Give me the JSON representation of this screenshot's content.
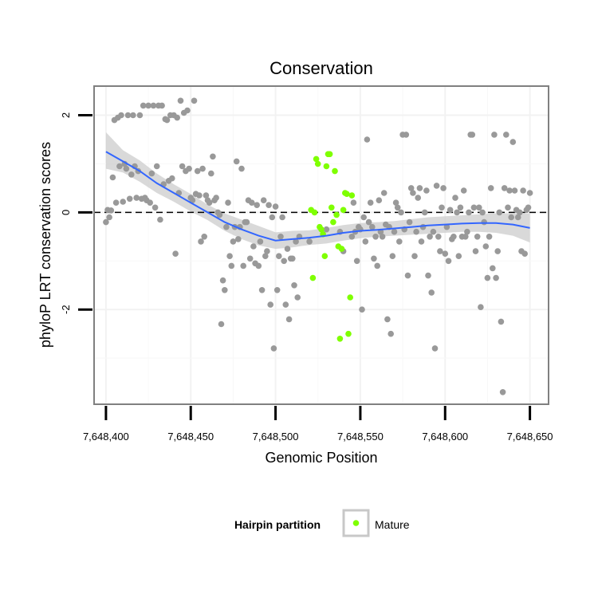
{
  "chart_data": {
    "type": "scatter",
    "title": "Conservation",
    "xlabel": "Genomic Position",
    "ylabel": "phyloP LRT conservation scores",
    "xlim": [
      7648393,
      7648661
    ],
    "ylim": [
      -3.95,
      2.6
    ],
    "x_ticks": [
      7648400,
      7648450,
      7648500,
      7648550,
      7648600,
      7648650
    ],
    "x_tick_labels": [
      "7,648,400",
      "7,648,450",
      "7,648,500",
      "7,648,550",
      "7,648,600",
      "7,648,650"
    ],
    "y_ticks": [
      -2,
      0,
      2
    ],
    "y_tick_labels": [
      "-2",
      "0",
      "2"
    ],
    "grid": true,
    "reference_line": {
      "y": 0,
      "style": "dashed",
      "color": "#000000"
    },
    "legend": {
      "title": "Hairpin partition",
      "placement": "bottom",
      "entries": [
        "Mature"
      ]
    },
    "colors": {
      "other": "#999999",
      "mature": "#7fff00",
      "smooth": "#3366ff",
      "band": "#cccccc"
    },
    "series": [
      {
        "key": "other",
        "points": [
          [
            7648400,
            -0.2
          ],
          [
            7648401,
            0.05
          ],
          [
            7648402,
            -0.1
          ],
          [
            7648403,
            0.04
          ],
          [
            7648404,
            0.72
          ],
          [
            7648405,
            1.9
          ],
          [
            7648406,
            0.2
          ],
          [
            7648407,
            1.95
          ],
          [
            7648408,
            0.95
          ],
          [
            7648409,
            2.0
          ],
          [
            7648410,
            0.22
          ],
          [
            7648411,
            1.0
          ],
          [
            7648412,
            0.9
          ],
          [
            7648413,
            2.0
          ],
          [
            7648414,
            0.28
          ],
          [
            7648415,
            0.78
          ],
          [
            7648416,
            2.0
          ],
          [
            7648417,
            0.95
          ],
          [
            7648418,
            0.3
          ],
          [
            7648419,
            0.85
          ],
          [
            7648420,
            2.0
          ],
          [
            7648421,
            0.28
          ],
          [
            7648422,
            2.2
          ],
          [
            7648423,
            0.3
          ],
          [
            7648424,
            0.25
          ],
          [
            7648425,
            2.2
          ],
          [
            7648426,
            0.2
          ],
          [
            7648427,
            0.8
          ],
          [
            7648428,
            2.2
          ],
          [
            7648429,
            0.1
          ],
          [
            7648430,
            0.95
          ],
          [
            7648431,
            2.2
          ],
          [
            7648432,
            -0.15
          ],
          [
            7648433,
            2.2
          ],
          [
            7648434,
            0.58
          ],
          [
            7648435,
            1.92
          ],
          [
            7648436,
            1.9
          ],
          [
            7648437,
            0.65
          ],
          [
            7648438,
            2.0
          ],
          [
            7648439,
            0.7
          ],
          [
            7648440,
            2.0
          ],
          [
            7648441,
            -0.85
          ],
          [
            7648442,
            1.95
          ],
          [
            7648443,
            0.4
          ],
          [
            7648444,
            2.3
          ],
          [
            7648445,
            0.95
          ],
          [
            7648446,
            2.05
          ],
          [
            7648447,
            0.85
          ],
          [
            7648448,
            2.1
          ],
          [
            7648449,
            0.9
          ],
          [
            7648450,
            0.3
          ],
          [
            7648451,
            0.25
          ],
          [
            7648452,
            2.3
          ],
          [
            7648453,
            0.38
          ],
          [
            7648454,
            0.85
          ],
          [
            7648455,
            0.35
          ],
          [
            7648456,
            -0.6
          ],
          [
            7648457,
            0.9
          ],
          [
            7648458,
            -0.5
          ],
          [
            7648459,
            0.35
          ],
          [
            7648460,
            0.25
          ],
          [
            7648461,
            0.2
          ],
          [
            7648462,
            0.8
          ],
          [
            7648463,
            1.15
          ],
          [
            7648464,
            0.25
          ],
          [
            7648465,
            0.3
          ],
          [
            7648466,
            0.0
          ],
          [
            7648467,
            -0.05
          ],
          [
            7648468,
            -2.3
          ],
          [
            7648469,
            -1.4
          ],
          [
            7648470,
            -1.6
          ],
          [
            7648471,
            -0.3
          ],
          [
            7648472,
            0.2
          ],
          [
            7648473,
            -0.9
          ],
          [
            7648474,
            -1.1
          ],
          [
            7648475,
            -0.6
          ],
          [
            7648476,
            -0.3
          ],
          [
            7648477,
            1.05
          ],
          [
            7648478,
            -0.55
          ],
          [
            7648479,
            -0.3
          ],
          [
            7648480,
            0.9
          ],
          [
            7648481,
            -1.1
          ],
          [
            7648482,
            -0.2
          ],
          [
            7648483,
            -0.2
          ],
          [
            7648484,
            0.25
          ],
          [
            7648485,
            -0.95
          ],
          [
            7648486,
            0.2
          ],
          [
            7648487,
            -0.7
          ],
          [
            7648488,
            -1.05
          ],
          [
            7648489,
            0.15
          ],
          [
            7648490,
            -1.1
          ],
          [
            7648491,
            -0.6
          ],
          [
            7648492,
            -1.6
          ],
          [
            7648493,
            0.25
          ],
          [
            7648494,
            -0.9
          ],
          [
            7648495,
            -0.8
          ],
          [
            7648496,
            0.15
          ],
          [
            7648497,
            -1.9
          ],
          [
            7648498,
            -0.1
          ],
          [
            7648499,
            -2.8
          ],
          [
            7648500,
            0.12
          ],
          [
            7648501,
            -1.6
          ],
          [
            7648502,
            -0.9
          ],
          [
            7648503,
            -0.5
          ],
          [
            7648504,
            -0.1
          ],
          [
            7648505,
            -1.0
          ],
          [
            7648506,
            -1.9
          ],
          [
            7648507,
            -0.75
          ],
          [
            7648508,
            -2.2
          ],
          [
            7648509,
            -0.95
          ],
          [
            7648510,
            -0.95
          ],
          [
            7648511,
            -1.5
          ],
          [
            7648512,
            -0.6
          ],
          [
            7648513,
            -1.75
          ],
          [
            7648514,
            -0.5
          ],
          [
            7648520,
            -0.6
          ],
          [
            7648530,
            -0.35
          ],
          [
            7648538,
            -0.4
          ],
          [
            7648540,
            -0.8
          ],
          [
            7648545,
            -0.5
          ],
          [
            7648546,
            0.2
          ],
          [
            7648547,
            -0.4
          ],
          [
            7648548,
            -1.0
          ],
          [
            7648549,
            -0.3
          ],
          [
            7648550,
            -0.35
          ],
          [
            7648551,
            -2.0
          ],
          [
            7648552,
            -0.1
          ],
          [
            7648553,
            -0.6
          ],
          [
            7648554,
            1.5
          ],
          [
            7648555,
            -0.2
          ],
          [
            7648556,
            0.2
          ],
          [
            7648557,
            -0.3
          ],
          [
            7648558,
            -0.95
          ],
          [
            7648559,
            -0.5
          ],
          [
            7648560,
            -1.1
          ],
          [
            7648561,
            0.25
          ],
          [
            7648562,
            -0.4
          ],
          [
            7648563,
            -0.5
          ],
          [
            7648564,
            0.4
          ],
          [
            7648565,
            -0.25
          ],
          [
            7648566,
            -2.2
          ],
          [
            7648567,
            -0.3
          ],
          [
            7648568,
            -2.5
          ],
          [
            7648569,
            -0.9
          ],
          [
            7648570,
            -0.4
          ],
          [
            7648571,
            0.2
          ],
          [
            7648572,
            0.1
          ],
          [
            7648573,
            -0.6
          ],
          [
            7648574,
            0.0
          ],
          [
            7648575,
            1.6
          ],
          [
            7648576,
            -0.35
          ],
          [
            7648577,
            1.6
          ],
          [
            7648578,
            -1.3
          ],
          [
            7648579,
            -0.2
          ],
          [
            7648580,
            0.5
          ],
          [
            7648581,
            0.4
          ],
          [
            7648582,
            -0.9
          ],
          [
            7648583,
            -0.4
          ],
          [
            7648584,
            0.3
          ],
          [
            7648585,
            0.5
          ],
          [
            7648586,
            -0.6
          ],
          [
            7648587,
            -0.3
          ],
          [
            7648588,
            0.0
          ],
          [
            7648589,
            0.45
          ],
          [
            7648590,
            -1.3
          ],
          [
            7648591,
            -0.5
          ],
          [
            7648592,
            -1.65
          ],
          [
            7648593,
            -0.4
          ],
          [
            7648594,
            -2.8
          ],
          [
            7648595,
            0.55
          ],
          [
            7648596,
            -0.5
          ],
          [
            7648597,
            -0.8
          ],
          [
            7648598,
            0.1
          ],
          [
            7648599,
            0.5
          ],
          [
            7648600,
            -0.85
          ],
          [
            7648601,
            -0.3
          ],
          [
            7648602,
            -1.0
          ],
          [
            7648603,
            0.05
          ],
          [
            7648604,
            -0.55
          ],
          [
            7648605,
            -0.5
          ],
          [
            7648606,
            0.3
          ],
          [
            7648607,
            0.0
          ],
          [
            7648608,
            -0.9
          ],
          [
            7648609,
            0.1
          ],
          [
            7648610,
            -0.5
          ],
          [
            7648611,
            0.45
          ],
          [
            7648612,
            -0.5
          ],
          [
            7648613,
            -0.4
          ],
          [
            7648614,
            0.0
          ],
          [
            7648615,
            1.6
          ],
          [
            7648616,
            1.6
          ],
          [
            7648617,
            0.1
          ],
          [
            7648618,
            -0.8
          ],
          [
            7648619,
            -0.5
          ],
          [
            7648620,
            0.1
          ],
          [
            7648621,
            -1.95
          ],
          [
            7648622,
            0.0
          ],
          [
            7648623,
            -0.2
          ],
          [
            7648624,
            -0.7
          ],
          [
            7648625,
            -1.35
          ],
          [
            7648626,
            -0.5
          ],
          [
            7648627,
            0.5
          ],
          [
            7648628,
            -1.15
          ],
          [
            7648629,
            1.6
          ],
          [
            7648630,
            -1.35
          ],
          [
            7648631,
            -0.8
          ],
          [
            7648632,
            0.0
          ],
          [
            7648633,
            -2.25
          ],
          [
            7648634,
            -3.7
          ],
          [
            7648635,
            0.5
          ],
          [
            7648636,
            1.6
          ],
          [
            7648637,
            0.1
          ],
          [
            7648638,
            0.45
          ],
          [
            7648639,
            -0.1
          ],
          [
            7648640,
            1.45
          ],
          [
            7648641,
            0.45
          ],
          [
            7648642,
            0.05
          ],
          [
            7648643,
            -0.1
          ],
          [
            7648644,
            0.0
          ],
          [
            7648645,
            -0.8
          ],
          [
            7648646,
            0.45
          ],
          [
            7648647,
            -0.85
          ],
          [
            7648648,
            0.05
          ],
          [
            7648649,
            0.1
          ],
          [
            7648650,
            0.4
          ]
        ]
      },
      {
        "key": "mature",
        "name": "Mature",
        "points": [
          [
            7648521,
            0.05
          ],
          [
            7648522,
            -1.35
          ],
          [
            7648523,
            0.0
          ],
          [
            7648524,
            1.1
          ],
          [
            7648525,
            1.0
          ],
          [
            7648526,
            -0.3
          ],
          [
            7648527,
            -0.35
          ],
          [
            7648528,
            -0.45
          ],
          [
            7648529,
            -0.9
          ],
          [
            7648530,
            0.95
          ],
          [
            7648531,
            1.2
          ],
          [
            7648532,
            1.2
          ],
          [
            7648533,
            0.1
          ],
          [
            7648534,
            -0.2
          ],
          [
            7648535,
            0.85
          ],
          [
            7648536,
            -0.05
          ],
          [
            7648537,
            -0.7
          ],
          [
            7648538,
            -2.6
          ],
          [
            7648539,
            -0.75
          ],
          [
            7648540,
            0.05
          ],
          [
            7648541,
            0.4
          ],
          [
            7648542,
            0.38
          ],
          [
            7648543,
            -2.5
          ],
          [
            7648544,
            -1.75
          ],
          [
            7648545,
            0.35
          ]
        ]
      }
    ],
    "smooth": {
      "x": [
        7648400,
        7648410,
        7648420,
        7648430,
        7648440,
        7648450,
        7648460,
        7648470,
        7648480,
        7648490,
        7648500,
        7648510,
        7648520,
        7648530,
        7648540,
        7648550,
        7648560,
        7648570,
        7648580,
        7648590,
        7648600,
        7648610,
        7648620,
        7648630,
        7648640,
        7648650
      ],
      "y": [
        1.25,
        1.05,
        0.85,
        0.6,
        0.4,
        0.2,
        0.0,
        -0.2,
        -0.35,
        -0.48,
        -0.58,
        -0.55,
        -0.52,
        -0.48,
        -0.42,
        -0.38,
        -0.36,
        -0.33,
        -0.3,
        -0.27,
        -0.25,
        -0.23,
        -0.22,
        -0.22,
        -0.25,
        -0.32
      ],
      "lower": [
        0.9,
        0.82,
        0.63,
        0.4,
        0.22,
        0.02,
        -0.16,
        -0.38,
        -0.55,
        -0.68,
        -0.75,
        -0.72,
        -0.67,
        -0.64,
        -0.58,
        -0.53,
        -0.5,
        -0.48,
        -0.46,
        -0.44,
        -0.42,
        -0.4,
        -0.4,
        -0.42,
        -0.48,
        -0.62
      ],
      "upper": [
        1.65,
        1.28,
        1.07,
        0.8,
        0.58,
        0.38,
        0.16,
        -0.02,
        -0.15,
        -0.28,
        -0.41,
        -0.38,
        -0.37,
        -0.32,
        -0.26,
        -0.22,
        -0.2,
        -0.18,
        -0.14,
        -0.1,
        -0.08,
        -0.06,
        -0.04,
        -0.02,
        -0.02,
        -0.02
      ]
    }
  }
}
